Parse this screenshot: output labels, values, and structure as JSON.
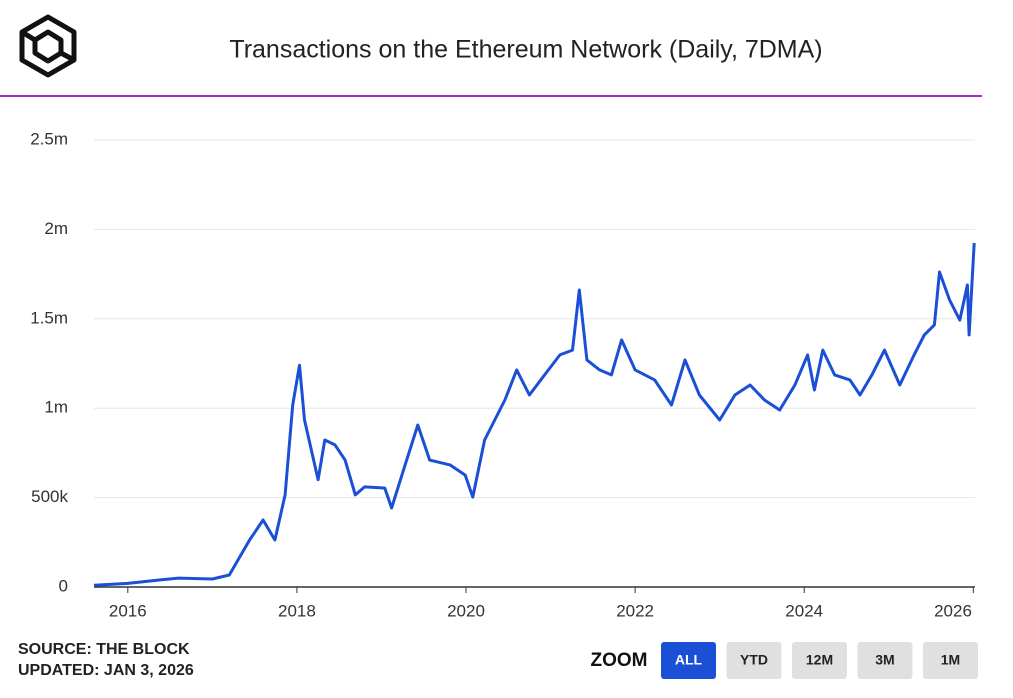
{
  "chart_data": {
    "type": "line",
    "title": "Transactions on the Ethereum Network (Daily, 7DMA)",
    "x": [
      2015.6,
      2016.0,
      2016.4,
      2016.6,
      2017.0,
      2017.2,
      2017.44,
      2017.6,
      2017.74,
      2017.86,
      2017.95,
      2018.03,
      2018.09,
      2018.25,
      2018.33,
      2018.45,
      2018.57,
      2018.69,
      2018.8,
      2019.04,
      2019.12,
      2019.28,
      2019.43,
      2019.57,
      2019.81,
      2019.99,
      2020.08,
      2020.22,
      2020.46,
      2020.6,
      2020.75,
      2020.93,
      2021.11,
      2021.26,
      2021.34,
      2021.43,
      2021.58,
      2021.72,
      2021.84,
      2022.0,
      2022.23,
      2022.43,
      2022.59,
      2022.76,
      2023.0,
      2023.18,
      2023.36,
      2023.53,
      2023.71,
      2023.89,
      2024.04,
      2024.12,
      2024.22,
      2024.36,
      2024.54,
      2024.66,
      2024.8,
      2024.95,
      2025.13,
      2025.3,
      2025.42,
      2025.54,
      2025.6,
      2025.72,
      2025.84,
      2025.93,
      2025.95,
      2026.01
    ],
    "values": [
      10000,
      20000,
      40000,
      50000,
      45000,
      67000,
      263000,
      375000,
      263000,
      515000,
      1018000,
      1240000,
      934000,
      600000,
      822000,
      795000,
      710000,
      515000,
      560000,
      553000,
      442000,
      683000,
      906000,
      710000,
      683000,
      626000,
      503000,
      822000,
      1046000,
      1214000,
      1074000,
      1186000,
      1298000,
      1325000,
      1661000,
      1270000,
      1214000,
      1186000,
      1382000,
      1214000,
      1158000,
      1018000,
      1270000,
      1074000,
      934000,
      1074000,
      1130000,
      1046000,
      990000,
      1130000,
      1298000,
      1102000,
      1325000,
      1186000,
      1158000,
      1074000,
      1186000,
      1325000,
      1130000,
      1298000,
      1410000,
      1466000,
      1762000,
      1605000,
      1493000,
      1689000,
      1410000,
      1924000
    ],
    "color": "#1a4fd6",
    "xlim": [
      2015.6,
      2026.02
    ],
    "xticks": [
      2016,
      2018,
      2020,
      2022,
      2024,
      2026
    ],
    "ylim": [
      0,
      2500000
    ],
    "yticks": [
      0,
      {
        "value": 500000,
        "label": "500k"
      },
      {
        "value": 1000000,
        "label": "1m"
      },
      {
        "value": 1500000,
        "label": "1.5m"
      },
      {
        "value": 2000000,
        "label": "2m"
      },
      {
        "value": 2500000,
        "label": "2.5m"
      }
    ],
    "grid": true
  },
  "footer": {
    "source": "SOURCE: THE BLOCK",
    "updated": "UPDATED: JAN 3, 2026"
  },
  "zoom": {
    "label": "ZOOM",
    "buttons": [
      "ALL",
      "YTD",
      "12M",
      "3M",
      "1M"
    ],
    "active": 0
  }
}
